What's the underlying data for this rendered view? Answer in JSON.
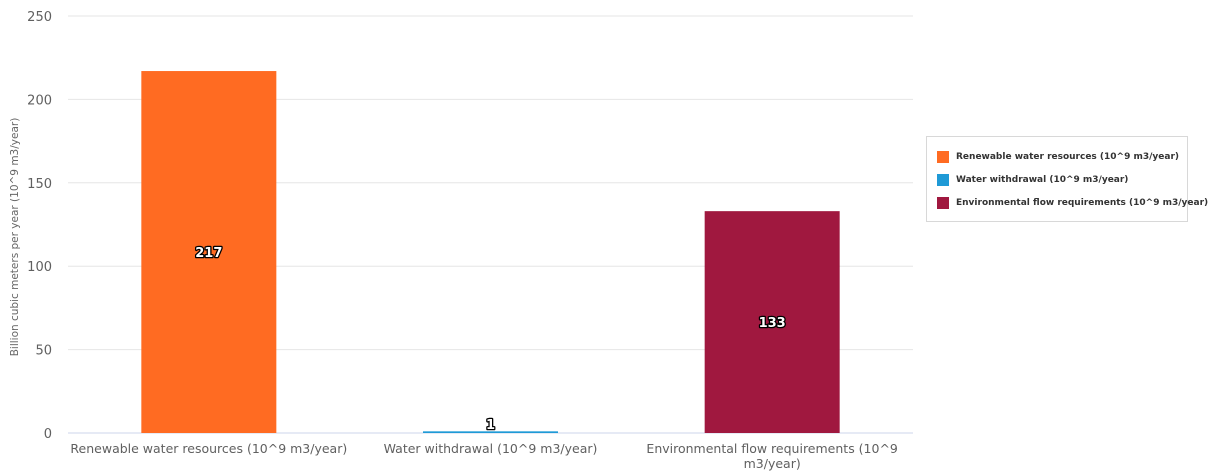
{
  "chart_data": {
    "type": "bar",
    "title": "",
    "xlabel": "",
    "ylabel": "Billion cubic meters per year (10^9 m3/year)",
    "ylim": [
      0,
      250
    ],
    "yticks": [
      "0",
      "50",
      "100",
      "150",
      "200",
      "250"
    ],
    "grid": true,
    "legend_position": "right",
    "categories": [
      "Renewable water resources (10^9 m3/year)",
      "Water withdrawal (10^9 m3/year)",
      "Environmental flow requirements (10^9 m3/year)"
    ],
    "values": [
      217,
      1,
      133
    ],
    "data_labels": [
      "217",
      "1",
      "133"
    ],
    "colors": [
      "#ff6b22",
      "#1f9ad6",
      "#a0183f"
    ],
    "legend": [
      {
        "label": "Renewable water resources (10^9 m3/year)",
        "color": "#ff6b22"
      },
      {
        "label": "Water withdrawal (10^9 m3/year)",
        "color": "#1f9ad6"
      },
      {
        "label": "Environmental flow requirements (10^9 m3/year)",
        "color": "#a0183f"
      }
    ]
  }
}
